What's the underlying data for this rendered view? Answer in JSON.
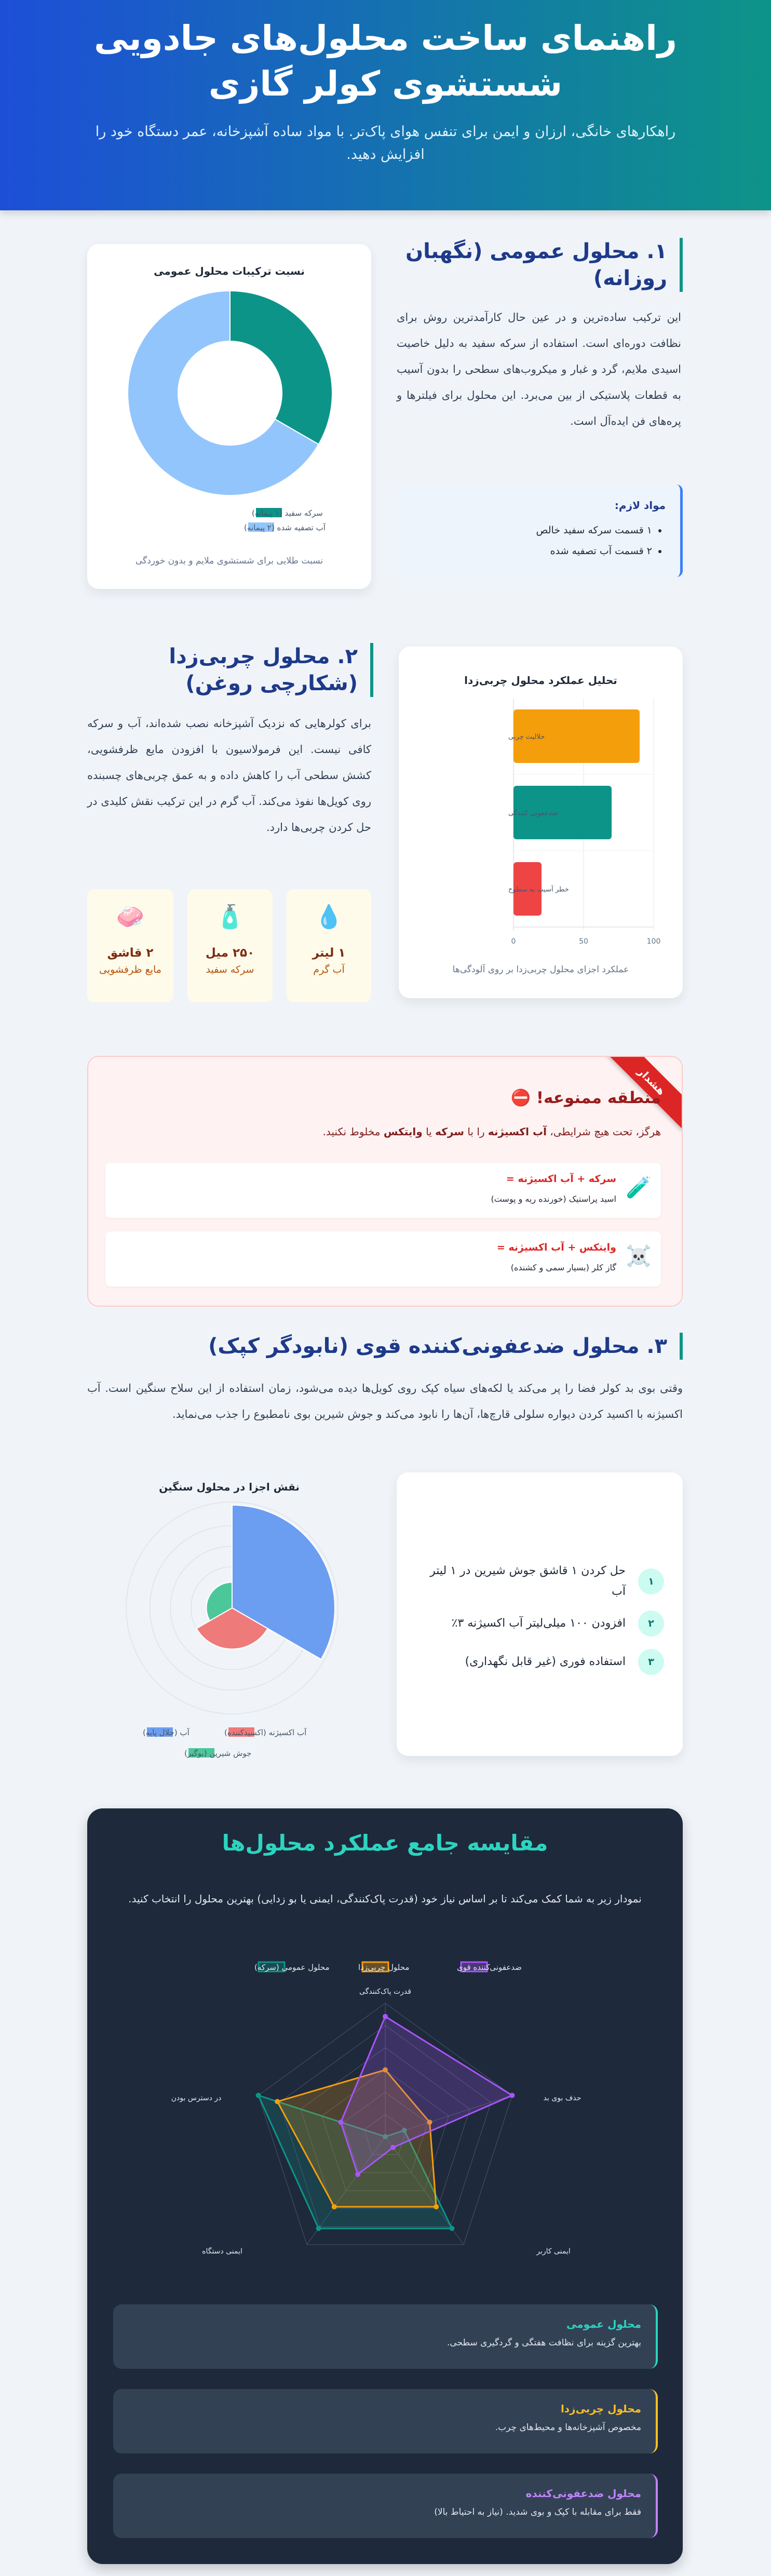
{
  "header": {
    "title": "راهنمای ساخت محلول‌های جادویی شستشوی کولر گازی",
    "subtitle": "راهکارهای خانگی، ارزان و ایمن برای تنفس هوای پاک‌تر. با مواد ساده آشپزخانه، عمر دستگاه خود را افزایش دهید.",
    "gradient": [
      "#1d4ed8",
      "#0d9488"
    ]
  },
  "section1": {
    "title": "۱. محلول عمومی (نگهبان روزانه)",
    "body": "این ترکیب ساده‌ترین و در عین حال کارآمدترین روش برای نظافت دوره‌ای است. استفاده از سرکه سفید به دلیل خاصیت اسیدی ملایم، گرد و غبار و میکروب‌های سطحی را بدون آسیب به قطعات پلاستیکی از بین می‌برد. این محلول برای فیلترها و پره‌های فن ایده‌آل است.",
    "ingredients": {
      "title": "مواد لازم:",
      "items": [
        "۱ قسمت سرکه سفید خالص",
        "۲ قسمت آب تصفیه شده"
      ]
    }
  },
  "section2": {
    "title": "۲. محلول چربی‌زدا (شکارچی روغن)",
    "body": "برای کولرهایی که نزدیک آشپزخانه نصب شده‌اند، آب و سرکه کافی نیست. این فرمولاسیون با افزودن مایع ظرفشویی، کشش سطحی آب را کاهش داده و به عمق چربی‌های چسبنده روی کویل‌ها نفوذ می‌کند. آب گرم در این ترکیب نقش کلیدی در حل کردن چربی‌ها دارد.",
    "stats": [
      {
        "icon": "water-drop-icon",
        "glyph": "💧",
        "value": "۱ لیتر",
        "label": "آب گرم"
      },
      {
        "icon": "vinegar-bottle-icon",
        "glyph": "🧴",
        "value": "۲۵۰ میل",
        "label": "سرکه سفید"
      },
      {
        "icon": "soap-icon",
        "glyph": "🧼",
        "value": "۲ قاشق",
        "label": "مایع ظرفشویی"
      }
    ]
  },
  "warning": {
    "ribbon": "هشدار",
    "icon": "no-entry-icon",
    "glyph": "⛔",
    "title": "منطقه ممنوعه!",
    "text": [
      {
        "t": "هرگز، تحت هیچ شرایطی، ",
        "b": false
      },
      {
        "t": "آب اکسیژنه",
        "b": true
      },
      {
        "t": " را با ",
        "b": false
      },
      {
        "t": "سرکه",
        "b": true
      },
      {
        "t": " یا ",
        "b": false
      },
      {
        "t": "وایتکس",
        "b": true
      },
      {
        "t": " مخلوط نکنید.",
        "b": false
      }
    ],
    "items": [
      {
        "icon": "test-tube-icon",
        "glyph": "🧪",
        "title": "سرکه + آب اکسیژنه =",
        "desc": "اسید پراستیک (خورنده ریه و پوست)"
      },
      {
        "icon": "skull-crossbones-icon",
        "glyph": "☠️",
        "title": "وایتکس + آب اکسیژنه =",
        "desc": "گاز کلر (بسیار سمی و کشنده)"
      }
    ]
  },
  "section3": {
    "title": "۳. محلول ضدعفونی‌کننده قوی (نابودگر کپک)",
    "body": "وقتی بوی بد کولر فضا را پر می‌کند یا لکه‌های سیاه کپک روی کویل‌ها دیده می‌شود، زمان استفاده از این سلاح سنگین است. آب اکسیژنه با اکسید کردن دیواره سلولی قارچ‌ها، آن‌ها را نابود می‌کند و جوش شیرین بوی نامطبوع را جذب می‌نماید.",
    "steps": [
      {
        "n": "۱",
        "text": "حل کردن ۱ قاشق جوش شیرین در ۱ لیتر آب"
      },
      {
        "n": "۲",
        "text": "افزودن ۱۰۰ میلی‌لیتر آب اکسیژنه ۳٪"
      },
      {
        "n": "۳",
        "text": "استفاده فوری (غیر قابل نگهداری)"
      }
    ]
  },
  "comparison": {
    "title": "مقایسه جامع عملکرد محلول‌ها",
    "description": "نمودار زیر به شما کمک می‌کند تا بر اساس نیاز خود (قدرت پاک‌کنندگی، ایمنی یا بو زدایی) بهترین محلول را انتخاب کنید.",
    "summaries": [
      {
        "title": "محلول عمومی",
        "desc": "بهترین گزینه برای نظافت هفتگی و گردگیری سطحی.",
        "color": "#2dd4bf"
      },
      {
        "title": "محلول چربی‌زدا",
        "desc": "مخصوص آشپزخانه‌ها و محیط‌های چرب.",
        "color": "#fbbf24"
      },
      {
        "title": "محلول ضدعفونی‌کننده",
        "desc": "فقط برای مقابله با کپک و بوی شدید. (نیاز به احتیاط بالا)",
        "color": "#c084fc"
      }
    ]
  },
  "chart_data": [
    {
      "type": "pie",
      "variant": "doughnut",
      "title": "نسبت ترکیبات محلول عمومی",
      "categories": [
        "سرکه سفید (۱ پیمانه)",
        "آب تصفیه شده (۲ پیمانه)"
      ],
      "values": [
        1,
        2
      ],
      "colors": [
        "#0d9488",
        "#93c5fd"
      ],
      "legend": "bottom",
      "caption": "نسبت طلایی برای شستشوی ملایم و بدون خوردگی"
    },
    {
      "type": "bar",
      "orientation": "horizontal",
      "title": "تحلیل عملکرد محلول چربی‌زدا",
      "categories": [
        "حلالیت چربی",
        "ضدعفونی کنندگی",
        "خطر آسیب به سطوح"
      ],
      "values": [
        90,
        70,
        20
      ],
      "colors": [
        "#f59e0b",
        "#0d9488",
        "#ef4444"
      ],
      "xlim": [
        0,
        100
      ],
      "xticks": [
        "0",
        "50",
        "100"
      ],
      "grid": true,
      "caption": "عملکرد اجزای محلول چربی‌زدا بر روی آلودگی‌ها"
    },
    {
      "type": "polarArea",
      "title": "نقش اجزا در محلول سنگین",
      "categories": [
        "آب (حلال پایه)",
        "آب اکسیژنه (اکسیدکننده)",
        "جوش شیرین (بوگیر)"
      ],
      "values": [
        100,
        40,
        25
      ],
      "colors": [
        "#6b9ef0",
        "#ef7a7a",
        "#4cc79a"
      ],
      "legend": "bottom",
      "grid": true
    },
    {
      "type": "radar",
      "axes": [
        "قدرت پاک‌کنندگی",
        "حذف بوی بد",
        "ایمنی کاربر",
        "ایمنی دستگاه",
        "در دسترس بودن"
      ],
      "range": [
        0,
        10
      ],
      "legend": "top",
      "grid": true,
      "series": [
        {
          "name": "محلول عمومی (سرکه)",
          "values": [
            0,
            1.5,
            8.5,
            8.5,
            10
          ],
          "color": "#0d9488"
        },
        {
          "name": "محلول چربی‌زدا",
          "values": [
            5,
            3.5,
            6.5,
            6.5,
            8.5
          ],
          "color": "#f59e0b"
        },
        {
          "name": "ضدعفونی‌کننده قوی",
          "values": [
            9,
            10,
            1,
            3.5,
            3.5
          ],
          "color": "#a855f7"
        }
      ]
    }
  ]
}
